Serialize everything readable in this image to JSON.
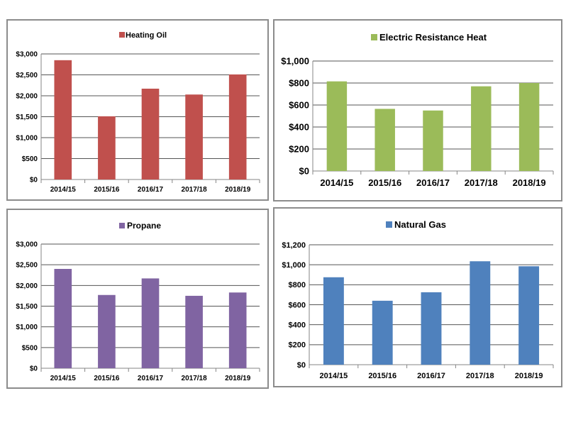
{
  "chart_data": [
    {
      "type": "bar",
      "title": "Heating Oil",
      "legend": "Heating Oil",
      "color": "#c0504d",
      "categories": [
        "2014/15",
        "2015/16",
        "2016/17",
        "2017/18",
        "2018/19"
      ],
      "values": [
        2850,
        1510,
        2170,
        2030,
        2510
      ],
      "ylim": [
        0,
        3000
      ],
      "yticks": [
        0,
        500,
        1000,
        1500,
        2000,
        2500,
        3000
      ],
      "ytick_labels": [
        "$0",
        "$500",
        "$1,000",
        "$1,500",
        "$2,000",
        "$2,500",
        "$3,000"
      ],
      "grid": true,
      "legend_position": "top"
    },
    {
      "type": "bar",
      "title": "Electric Resistance Heat",
      "legend": "Electric Resistance Heat",
      "color": "#9bbb59",
      "categories": [
        "2014/15",
        "2015/16",
        "2016/17",
        "2017/18",
        "2018/19"
      ],
      "values": [
        815,
        565,
        550,
        770,
        800
      ],
      "ylim": [
        0,
        1000
      ],
      "yticks": [
        0,
        200,
        400,
        600,
        800,
        1000
      ],
      "ytick_labels": [
        "$0",
        "$200",
        "$400",
        "$600",
        "$800",
        "$1,000"
      ],
      "grid": true,
      "legend_position": "top"
    },
    {
      "type": "bar",
      "title": "Propane",
      "legend": "Propane",
      "color": "#8064a2",
      "categories": [
        "2014/15",
        "2015/16",
        "2016/17",
        "2017/18",
        "2018/19"
      ],
      "values": [
        2400,
        1770,
        2170,
        1750,
        1830
      ],
      "ylim": [
        0,
        3000
      ],
      "yticks": [
        0,
        500,
        1000,
        1500,
        2000,
        2500,
        3000
      ],
      "ytick_labels": [
        "$0",
        "$500",
        "$1,000",
        "$1,500",
        "$2,000",
        "$2,500",
        "$3,000"
      ],
      "grid": true,
      "legend_position": "top"
    },
    {
      "type": "bar",
      "title": "Natural Gas",
      "legend": "Natural Gas",
      "color": "#4f81bd",
      "categories": [
        "2014/15",
        "2015/16",
        "2016/17",
        "2017/18",
        "2018/19"
      ],
      "values": [
        875,
        640,
        725,
        1035,
        985
      ],
      "ylim": [
        0,
        1200
      ],
      "yticks": [
        0,
        200,
        400,
        600,
        800,
        1000,
        1200
      ],
      "ytick_labels": [
        "$0",
        "$200",
        "$400",
        "$600",
        "$800",
        "$1,000",
        "$1,200"
      ],
      "grid": true,
      "legend_position": "top"
    }
  ]
}
